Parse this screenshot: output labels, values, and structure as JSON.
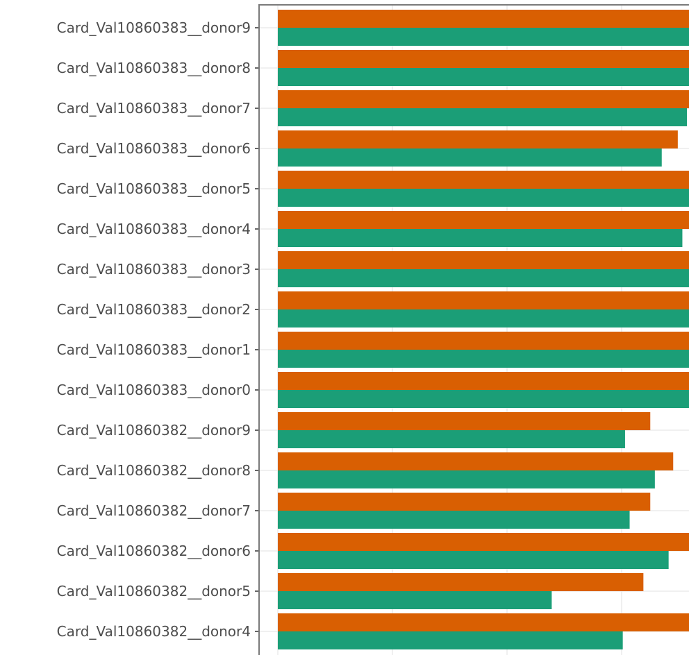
{
  "chart_data": {
    "type": "bar",
    "orientation": "horizontal",
    "categories": [
      "Card_Val10860383__donor9",
      "Card_Val10860383__donor8",
      "Card_Val10860383__donor7",
      "Card_Val10860383__donor6",
      "Card_Val10860383__donor5",
      "Card_Val10860383__donor4",
      "Card_Val10860383__donor3",
      "Card_Val10860383__donor2",
      "Card_Val10860383__donor1",
      "Card_Val10860383__donor0",
      "Card_Val10860382__donor9",
      "Card_Val10860382__donor8",
      "Card_Val10860382__donor7",
      "Card_Val10860382__donor6",
      "Card_Val10860382__donor5",
      "Card_Val10860382__donor4"
    ],
    "series": [
      {
        "color": "#d95f02",
        "values": [
          0.799,
          0.821,
          0.787,
          0.749,
          0.793,
          0.767,
          0.803,
          0.779,
          0.775,
          0.779,
          0.725,
          0.745,
          0.725,
          0.761,
          0.719,
          0.781
        ]
      },
      {
        "color": "#1b9e77",
        "values": [
          0.791,
          0.811,
          0.757,
          0.735,
          0.773,
          0.753,
          0.789,
          0.761,
          0.763,
          0.763,
          0.703,
          0.729,
          0.707,
          0.741,
          0.639,
          0.701
        ]
      }
    ],
    "xlim": [
      0.4,
      0.9
    ],
    "x_gridlines": [
      0.5,
      0.6,
      0.7,
      0.8,
      0.9
    ],
    "grid": true,
    "legend": "none"
  }
}
